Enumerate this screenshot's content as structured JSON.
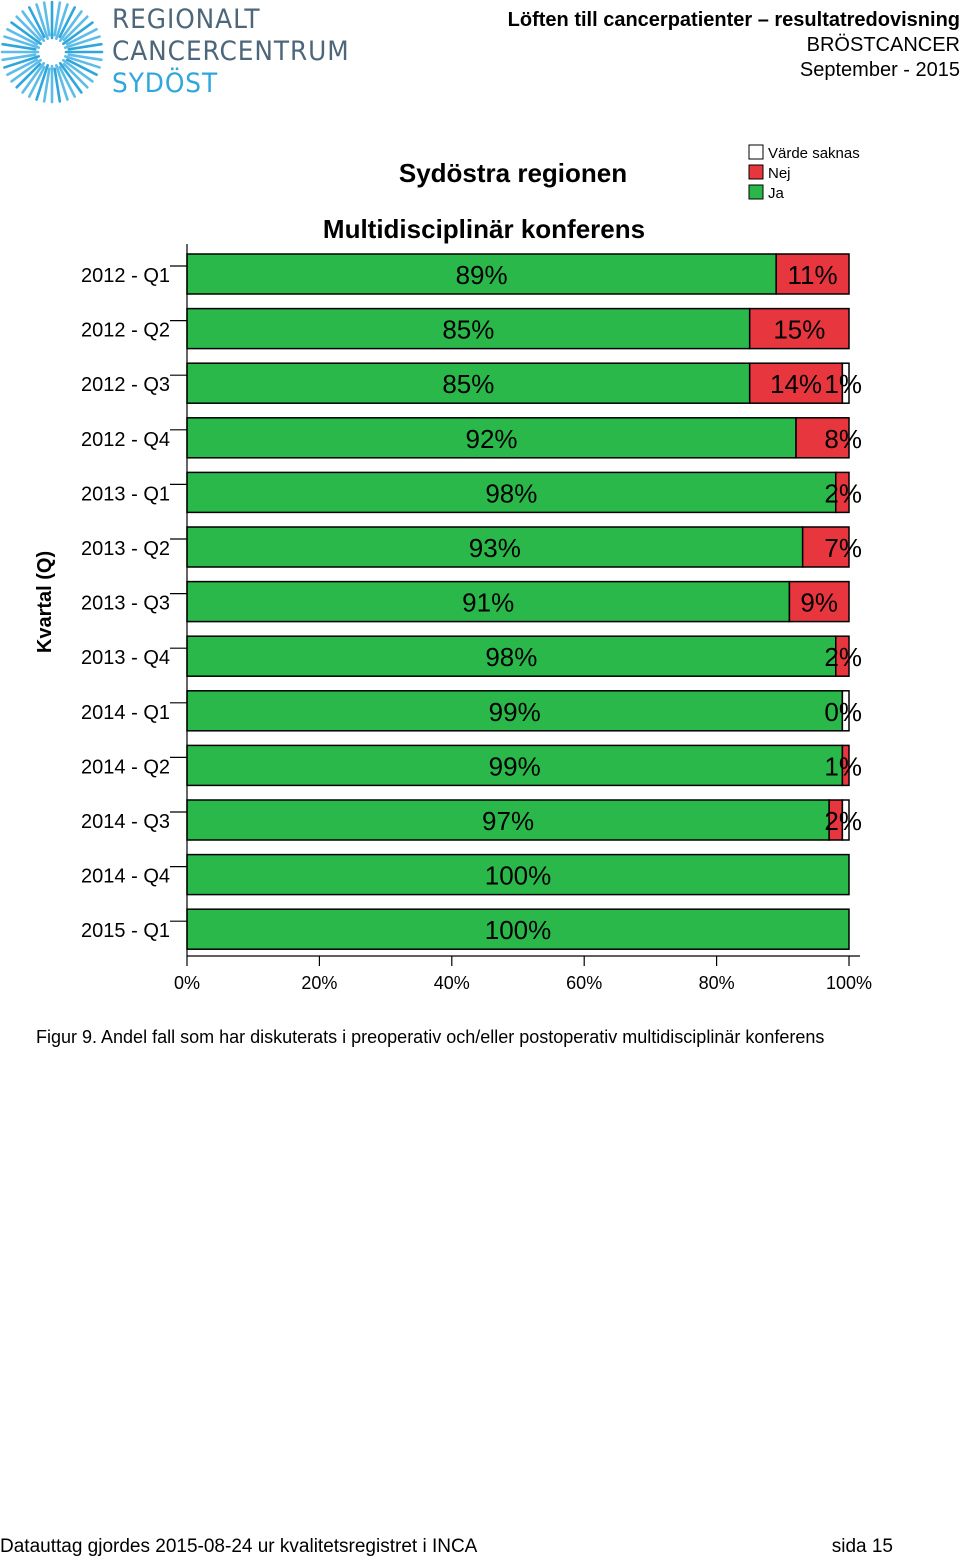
{
  "logo": {
    "line1": "REGIONALT",
    "line2": "CANCERCENTRUM",
    "line3": "SYDÖST",
    "icon": "sunburst-logo-icon",
    "colors": {
      "dark": "#4d6679",
      "light": "#2fa6dc"
    }
  },
  "header": {
    "title": "Löften till cancerpatienter – resultatredovisning",
    "subtitle": "BRÖSTCANCER",
    "date": "September - 2015"
  },
  "chart_data": {
    "type": "bar",
    "orientation": "horizontal",
    "stacked": true,
    "title": "Sydöstra regionen",
    "subtitle": "Multidisciplinär konferens",
    "ylabel": "Kvartal (Q)",
    "xlabel": "",
    "xlim": [
      0,
      100
    ],
    "x_ticks": [
      "0%",
      "20%",
      "40%",
      "60%",
      "80%",
      "100%"
    ],
    "x_tick_values": [
      0,
      20,
      40,
      60,
      80,
      100
    ],
    "legend_position": "top-right",
    "grid": false,
    "legend": [
      {
        "name": "Värde saknas",
        "color": "#ffffff"
      },
      {
        "name": "Nej",
        "color": "#e8363e"
      },
      {
        "name": "Ja",
        "color": "#2bb84a"
      }
    ],
    "categories": [
      "2012 - Q1",
      "2012 - Q2",
      "2012 - Q3",
      "2012 - Q4",
      "2013 - Q1",
      "2013 - Q2",
      "2013 - Q3",
      "2013 - Q4",
      "2014 - Q1",
      "2014 - Q2",
      "2014 - Q3",
      "2014 - Q4",
      "2015 - Q1"
    ],
    "series": [
      {
        "name": "Ja",
        "color": "#2bb84a",
        "values": [
          89,
          85,
          85,
          92,
          98,
          93,
          91,
          98,
          99,
          99,
          97,
          100,
          100
        ],
        "labels": [
          "89%",
          "85%",
          "85%",
          "92%",
          "98%",
          "93%",
          "91%",
          "98%",
          "99%",
          "99%",
          "97%",
          "100%",
          "100%"
        ]
      },
      {
        "name": "Nej",
        "color": "#e8363e",
        "values": [
          11,
          15,
          14,
          8,
          2,
          7,
          9,
          2,
          0,
          1,
          2,
          0,
          0
        ],
        "labels": [
          "11%",
          "15%",
          "14%",
          "8%",
          "2%",
          "7%",
          "9%",
          "2%",
          "0%",
          "1%",
          "2%",
          "",
          ""
        ]
      },
      {
        "name": "Värde saknas",
        "color": "#ffffff",
        "values": [
          0,
          0,
          1,
          0,
          0,
          0,
          0,
          0,
          0,
          0,
          1,
          0,
          0
        ],
        "labels": [
          "",
          "",
          "1%",
          "",
          "",
          "",
          "",
          "",
          "",
          "",
          "",
          "",
          ""
        ]
      }
    ]
  },
  "caption": "Figur 9. Andel fall som har diskuterats i preoperativ och/eller postoperativ multidisciplinär konferens",
  "footer": {
    "left": "Datauttag gjordes 2015-08-24 ur kvalitetsregistret i INCA",
    "right": "sida 15"
  }
}
